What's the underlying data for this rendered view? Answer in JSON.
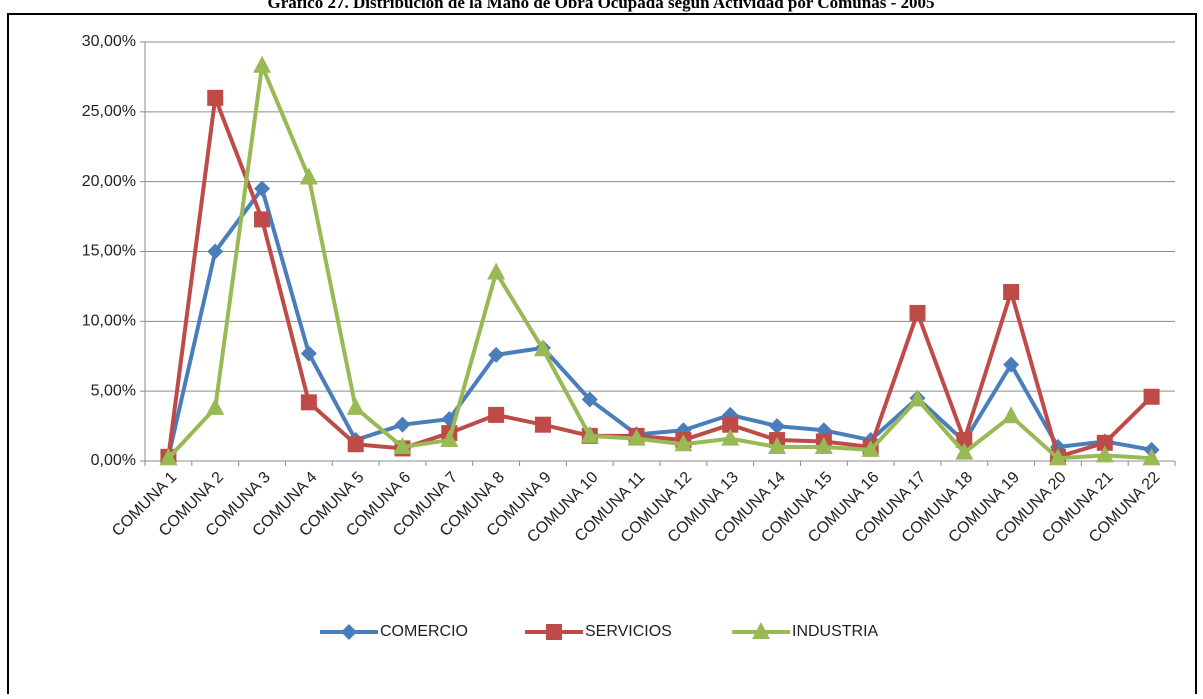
{
  "chart_data": {
    "type": "line",
    "title": "Gráfico 27. Distribución de la Mano de Obra Ocupada según Actividad por Comunas - 2005",
    "categories": [
      "COMUNA 1",
      "COMUNA 2",
      "COMUNA 3",
      "COMUNA 4",
      "COMUNA 5",
      "COMUNA 6",
      "COMUNA 7",
      "COMUNA 8",
      "COMUNA 9",
      "COMUNA 10",
      "COMUNA 11",
      "COMUNA 12",
      "COMUNA 13",
      "COMUNA 14",
      "COMUNA 15",
      "COMUNA 16",
      "COMUNA 17",
      "COMUNA 18",
      "COMUNA 19",
      "COMUNA 20",
      "COMUNA 21",
      "COMUNA 22"
    ],
    "series": [
      {
        "name": "COMERCIO",
        "color": "#4a7ebb",
        "marker": "diamond",
        "values": [
          0.3,
          15.0,
          19.5,
          7.7,
          1.5,
          2.6,
          3.0,
          7.6,
          8.1,
          4.4,
          1.9,
          2.2,
          3.3,
          2.5,
          2.2,
          1.5,
          4.5,
          1.4,
          6.9,
          1.0,
          1.4,
          0.8
        ]
      },
      {
        "name": "SERVICIOS",
        "color": "#be4b48",
        "marker": "square",
        "values": [
          0.3,
          26.0,
          17.3,
          4.2,
          1.2,
          0.9,
          2.0,
          3.3,
          2.6,
          1.8,
          1.8,
          1.5,
          2.6,
          1.5,
          1.4,
          1.0,
          10.6,
          1.5,
          12.1,
          0.3,
          1.3,
          4.6
        ]
      },
      {
        "name": "INDUSTRIA",
        "color": "#98b954",
        "marker": "triangle",
        "values": [
          0.2,
          3.8,
          28.3,
          20.3,
          3.8,
          1.0,
          1.5,
          13.5,
          8.0,
          1.8,
          1.6,
          1.2,
          1.6,
          1.0,
          1.0,
          0.8,
          4.4,
          0.6,
          3.2,
          0.2,
          0.4,
          0.2
        ]
      }
    ],
    "ylim": [
      0,
      30
    ],
    "yticks": [
      {
        "value": 0,
        "label": "0,00%"
      },
      {
        "value": 5,
        "label": "5,00%"
      },
      {
        "value": 10,
        "label": "10,00%"
      },
      {
        "value": 15,
        "label": "15,00%"
      },
      {
        "value": 20,
        "label": "20,00%"
      },
      {
        "value": 25,
        "label": "25,00%"
      },
      {
        "value": 30,
        "label": "30,00%"
      }
    ],
    "grid": true,
    "legend": "bottom"
  }
}
